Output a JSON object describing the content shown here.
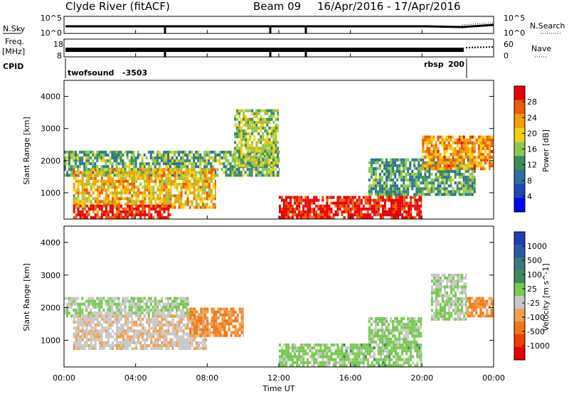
{
  "header": {
    "station": "Clyde River (fitACF)",
    "beam": "Beam 09",
    "date_range": "16/Apr/2016 - 17/Apr/2016"
  },
  "status_panels": {
    "nsky_label": "N.Sky",
    "nsearch_label": "N.Search",
    "noise_ticks_left": [
      "10^5",
      "10^0"
    ],
    "noise_ticks_right": [
      "10^5",
      "10^0"
    ],
    "freq_label": "Freq.",
    "freq_unit": "[MHz]",
    "freq_ticks": [
      "18",
      "8"
    ],
    "nave_label": "Nave",
    "nave_ticks": [
      "60",
      "0"
    ],
    "cpid_label": "CPID",
    "cpid_programs": [
      {
        "name": "twofsound",
        "id": "-3503"
      },
      {
        "name": "rbsp",
        "id": "200"
      }
    ]
  },
  "x_axis": {
    "label": "Time UT",
    "ticks": [
      "00:00",
      "04:00",
      "08:00",
      "12:00",
      "16:00",
      "20:00",
      "00:00"
    ],
    "range_hours": [
      0,
      24
    ]
  },
  "chart_data": [
    {
      "type": "heatmap",
      "title": "",
      "xlabel": "Time UT",
      "ylabel": "Slant Range [km]",
      "xlim": [
        0,
        24
      ],
      "ylim": [
        180,
        4500
      ],
      "yticks": [
        "1000",
        "2000",
        "3000",
        "4000"
      ],
      "colorbar": {
        "label": "Power [dB]",
        "ticks": [
          "4",
          "8",
          "12",
          "16",
          "20",
          "24",
          "28"
        ],
        "range": [
          0,
          30
        ],
        "colors": [
          "#0000ff",
          "#1e46b4",
          "#2a6fa0",
          "#3c8c5a",
          "#8cc850",
          "#f0d214",
          "#f0a000",
          "#f05a00",
          "#e60000"
        ]
      },
      "regions": [
        {
          "t": [
            0,
            12
          ],
          "r": [
            1500,
            2300
          ],
          "level": 13
        },
        {
          "t": [
            0.5,
            8.5
          ],
          "r": [
            500,
            1700
          ],
          "level": 20
        },
        {
          "t": [
            0.5,
            6
          ],
          "r": [
            180,
            600
          ],
          "level": 28
        },
        {
          "t": [
            9.5,
            12
          ],
          "r": [
            1800,
            3600
          ],
          "level": 16
        },
        {
          "t": [
            12,
            20
          ],
          "r": [
            180,
            850
          ],
          "level": 29
        },
        {
          "t": [
            17,
            23
          ],
          "r": [
            900,
            2000
          ],
          "level": 12
        },
        {
          "t": [
            20,
            24
          ],
          "r": [
            1700,
            2700
          ],
          "level": 22
        }
      ]
    },
    {
      "type": "heatmap",
      "title": "",
      "xlabel": "Time UT",
      "ylabel": "Slant Range [km]",
      "xlim": [
        0,
        24
      ],
      "ylim": [
        180,
        4500
      ],
      "yticks": [
        "1000",
        "2000",
        "3000",
        "4000"
      ],
      "colorbar": {
        "label": "Velocity [m s^-1]",
        "ticks": [
          "1000",
          "500",
          "100",
          "25",
          "-25",
          "-100",
          "-500",
          "-1000"
        ],
        "range": [
          -1000,
          1000
        ],
        "colors": [
          "#1e3cb4",
          "#285aa0",
          "#3c7878",
          "#3c8c5a",
          "#78c850",
          "#c8c8c8",
          "#f0a050",
          "#f07814",
          "#f03c00",
          "#e60000"
        ]
      },
      "regions": [
        {
          "t": [
            0,
            7
          ],
          "r": [
            1700,
            2300
          ],
          "level": 0
        },
        {
          "t": [
            0.5,
            8
          ],
          "r": [
            700,
            1700
          ],
          "level": -150
        },
        {
          "t": [
            7,
            10
          ],
          "r": [
            1100,
            2000
          ],
          "level": -400
        },
        {
          "t": [
            12,
            20
          ],
          "r": [
            180,
            850
          ],
          "level": 80
        },
        {
          "t": [
            17,
            20
          ],
          "r": [
            900,
            1700
          ],
          "level": 60
        },
        {
          "t": [
            20.5,
            22.5
          ],
          "r": [
            1600,
            3000
          ],
          "level": 0
        },
        {
          "t": [
            22.5,
            24
          ],
          "r": [
            1700,
            2300
          ],
          "level": -450
        }
      ]
    }
  ]
}
